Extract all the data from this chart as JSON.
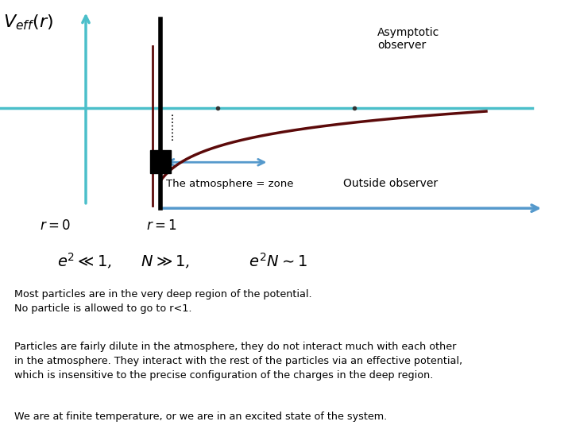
{
  "bg_color": "#ffffff",
  "asymptotic_label": "Asymptotic\nobserver",
  "outside_label": "Outside observer",
  "atmosphere_label": "The atmosphere = zone",
  "r0_label": "$r=0$",
  "r1_label": "$r=1$",
  "text1": "Most particles are in the very deep region of the potential.\nNo particle is allowed to go to r<1.",
  "text2": "Particles are fairly dilute in the atmosphere, they do not interact much with each other\nin the atmosphere. They interact with the rest of the particles via an effective potential,\nwhich is insensitive to the precise configuration of the charges in the deep region.",
  "text3": "We are at finite temperature, or we are in an excited state of the system.",
  "math_label": "$e^2 \\ll 1$,      $N \\gg 1$,            $e^2 N \\sim 1$",
  "cyan_color": "#4BBFCA",
  "dark_red_color": "#5C0A0A",
  "arrow_color": "#5599CC",
  "dot_color": "#333333"
}
